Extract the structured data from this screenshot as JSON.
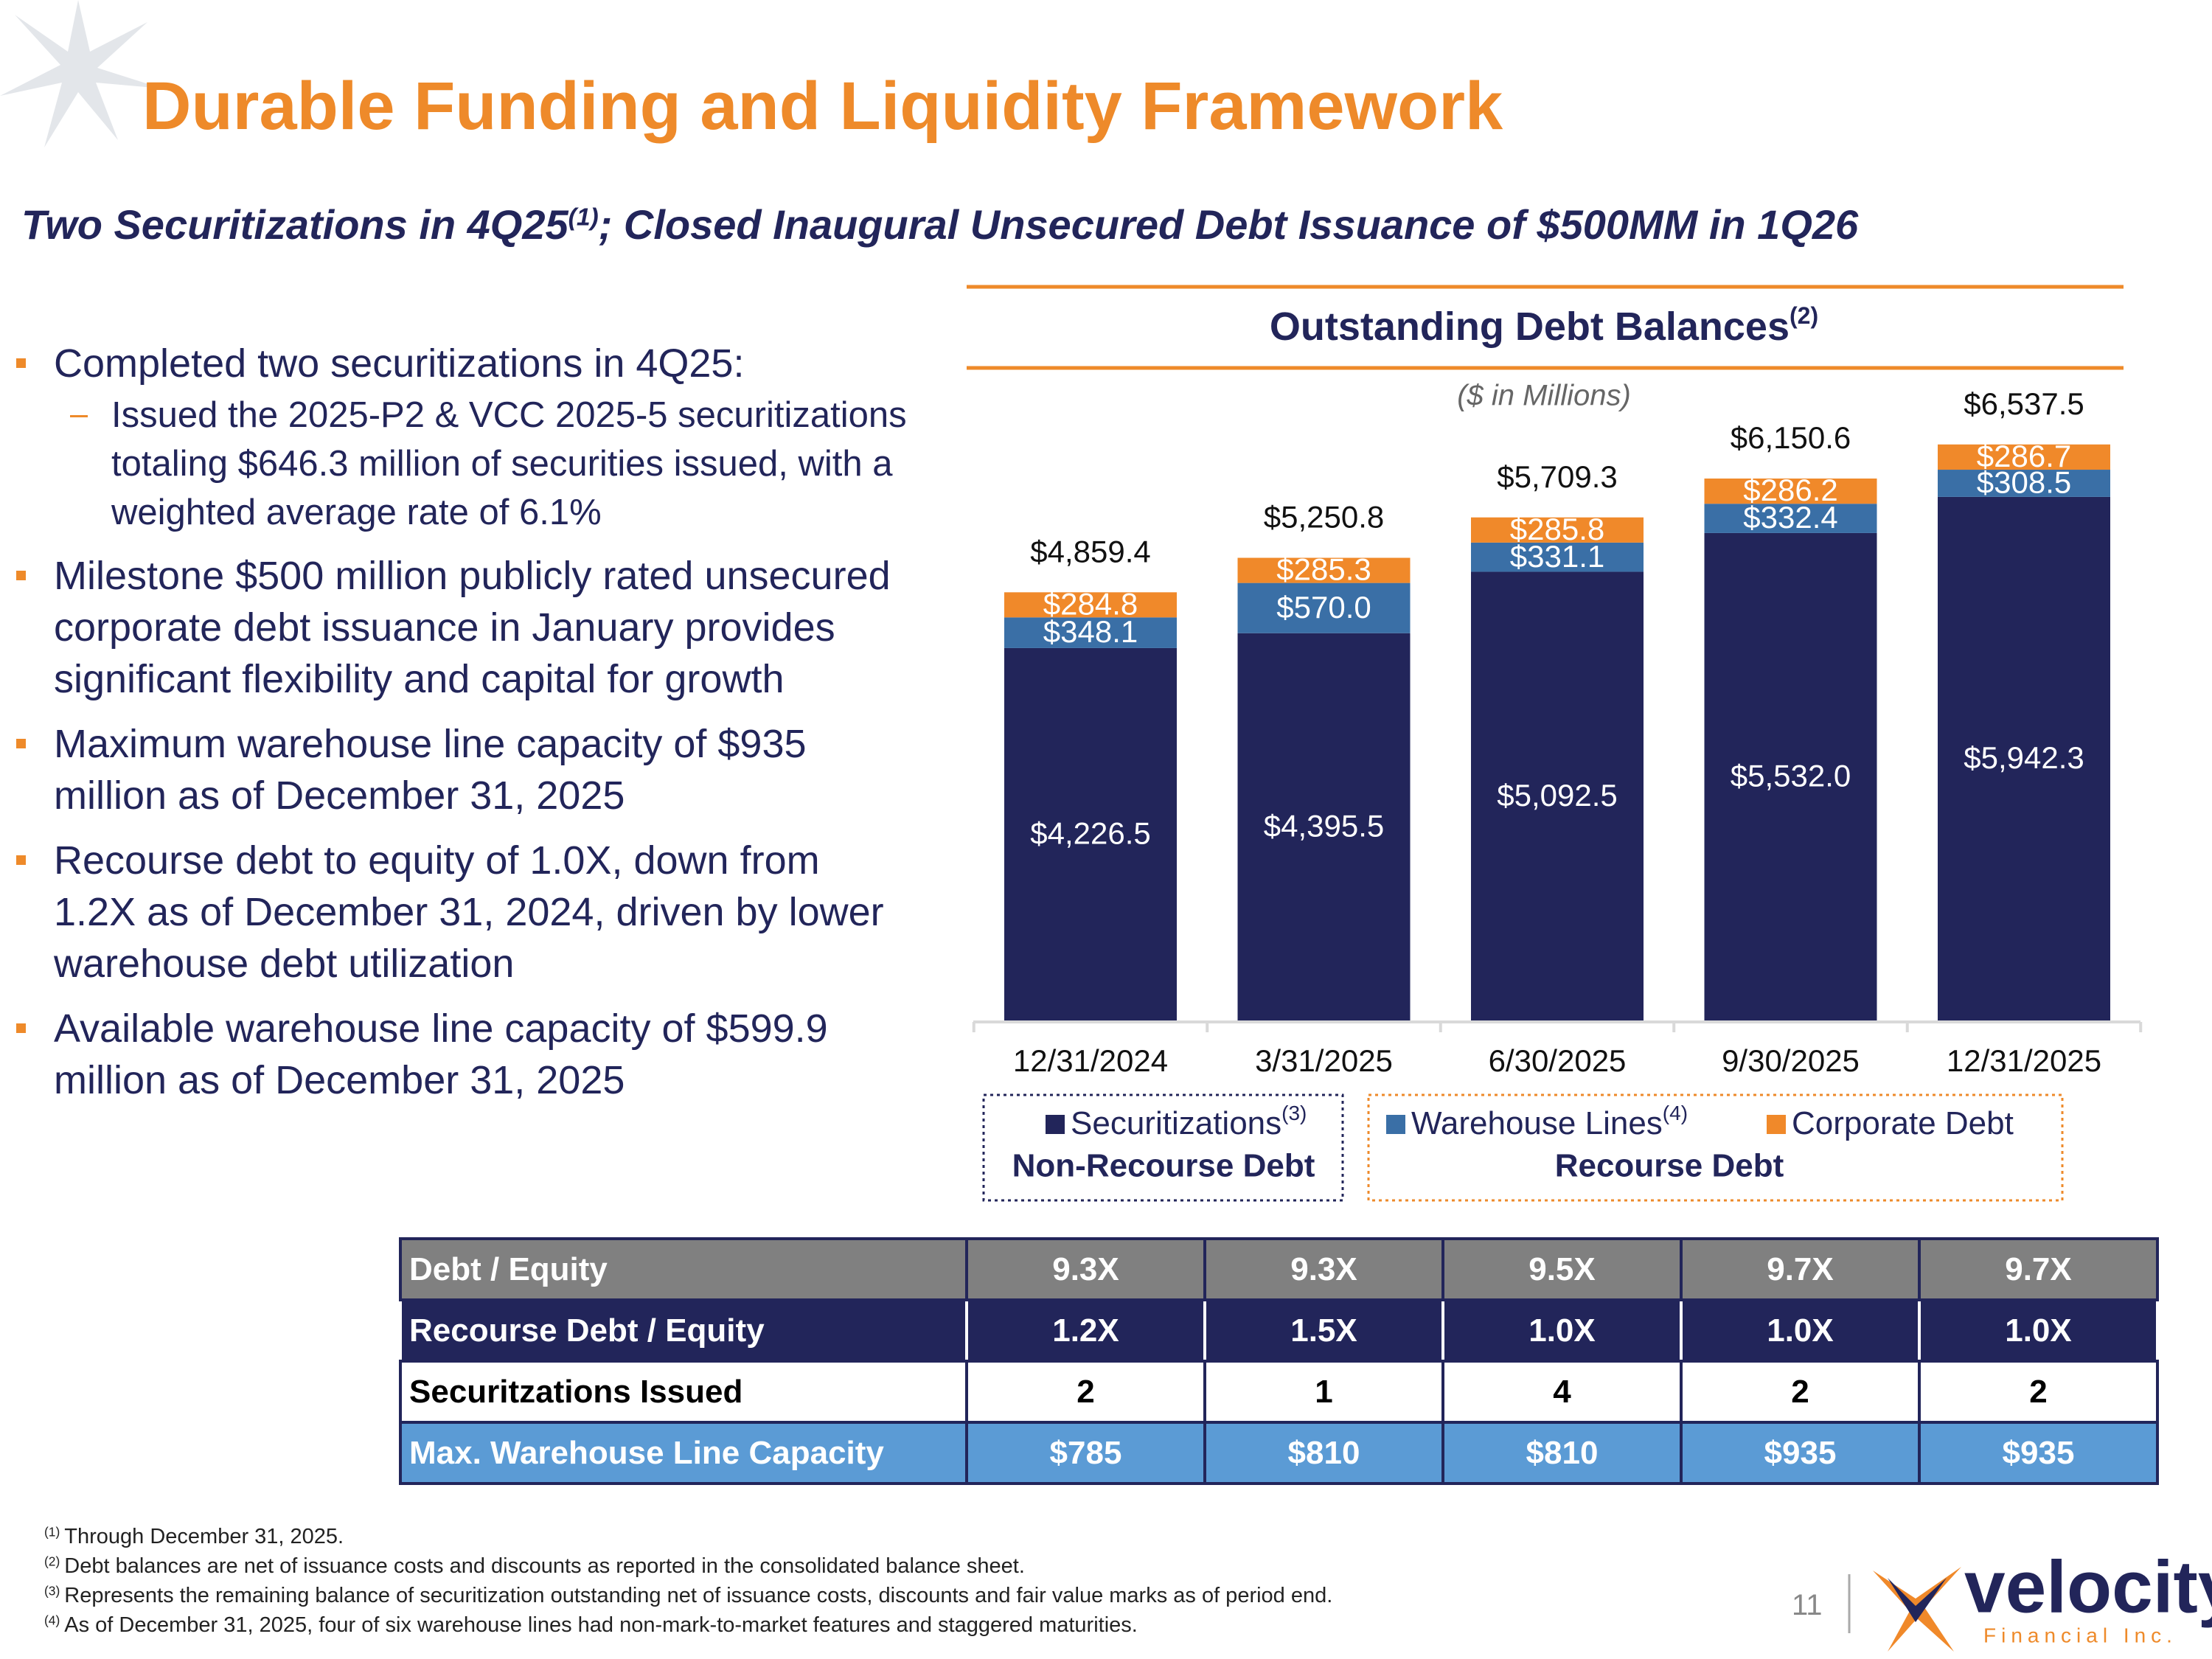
{
  "header": {
    "title": "Durable Funding and Liquidity Framework",
    "subtitle": "Two Securitizations in 4Q25",
    "subtitle_note": "(1)",
    "subtitle_rest": "; Closed Inaugural Unsecured Debt Issuance of $500MM in 1Q26"
  },
  "bullets": [
    {
      "text": "Completed two securitizations in 4Q25:",
      "sub": [
        "Issued the 2025-P2 & VCC 2025-5 securitizations totaling $646.3 million of securities issued, with a weighted average rate of 6.1%"
      ]
    },
    {
      "text": "Milestone $500 million publicly rated unsecured corporate debt issuance in January provides significant flexibility and capital for growth"
    },
    {
      "text": "Maximum warehouse line capacity of $935 million as of December 31, 2025"
    },
    {
      "text": "Recourse debt to equity of 1.0X, down from 1.2X as of December 31, 2024, driven by lower warehouse debt utilization"
    },
    {
      "text": "Available warehouse line capacity of $599.9 million as of December 31, 2025"
    }
  ],
  "chart_data": {
    "type": "bar",
    "stacked": true,
    "title": "Outstanding Debt Balances",
    "title_note": "(2)",
    "subtitle": "($ in Millions)",
    "categories": [
      "12/31/2024",
      "3/31/2025",
      "6/30/2025",
      "9/30/2025",
      "12/31/2025"
    ],
    "series": [
      {
        "name": "Securitizations",
        "name_note": "(3)",
        "color": "#22255a",
        "values": [
          4226.5,
          4395.5,
          5092.5,
          5532.0,
          5942.3
        ],
        "value_labels": [
          "$4,226.5",
          "$4,395.5",
          "$5,092.5",
          "$5,532.0",
          "$5,942.3"
        ]
      },
      {
        "name": "Warehouse Lines",
        "name_note": "(4)",
        "color": "#3a6fa6",
        "values": [
          348.1,
          570.0,
          331.1,
          332.4,
          308.5
        ],
        "value_labels": [
          "$348.1",
          "$570.0",
          "$331.1",
          "$332.4",
          "$308.5"
        ]
      },
      {
        "name": "Corporate Debt",
        "color": "#f0892a",
        "values": [
          284.8,
          285.3,
          285.8,
          286.2,
          286.7
        ],
        "value_labels": [
          "$284.8",
          "$285.3",
          "$285.8",
          "$286.2",
          "$286.7"
        ]
      }
    ],
    "totals": [
      4859.4,
      5250.8,
      5709.3,
      6150.6,
      6537.5
    ],
    "total_labels": [
      "$4,859.4",
      "$5,250.8",
      "$5,709.3",
      "$6,150.6",
      "$6,537.5"
    ],
    "legend_groups": [
      "Non-Recourse Debt",
      "Recourse Debt"
    ]
  },
  "table": {
    "rows": [
      [
        "Debt / Equity",
        "9.3X",
        "9.3X",
        "9.5X",
        "9.7X",
        "9.7X"
      ],
      [
        "Recourse Debt / Equity",
        "1.2X",
        "1.5X",
        "1.0X",
        "1.0X",
        "1.0X"
      ],
      [
        "Securitzations Issued",
        "2",
        "1",
        "4",
        "2",
        "2"
      ],
      [
        "Max. Warehouse Line Capacity",
        "$785",
        "$810",
        "$810",
        "$935",
        "$935"
      ]
    ]
  },
  "footnotes": [
    {
      "mark": "(1)",
      "text": "Through December 31, 2025."
    },
    {
      "mark": "(2)",
      "text": "Debt balances are net of issuance costs and discounts as reported in the consolidated balance sheet."
    },
    {
      "mark": "(3)",
      "text": "Represents the remaining balance of securitization outstanding net of issuance costs, discounts and fair value marks as of period end."
    },
    {
      "mark": "(4)",
      "text": "As of December 31, 2025, four of six warehouse lines had non-mark-to-market features and staggered maturities."
    }
  ],
  "page_number": "11",
  "logo": {
    "name": "velocity",
    "tagline": "Financial Inc."
  }
}
